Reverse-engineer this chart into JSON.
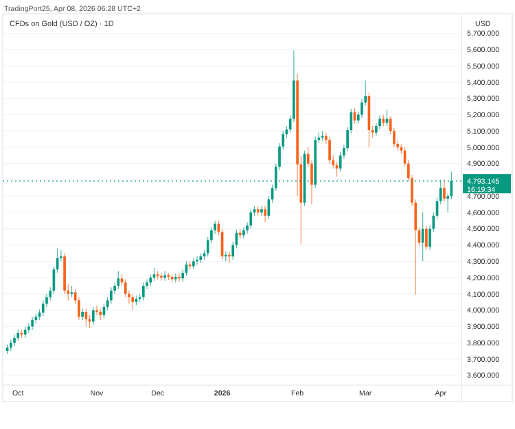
{
  "chart_data": {
    "type": "candlestick",
    "title": "CFDs on Gold (USD / OZ) · 1D",
    "ylabel": "USD",
    "annotations": [
      "TradingPort25, Apr 08, 2026 06:28 UTC+2",
      "16:19:34"
    ],
    "categories": [
      null,
      null,
      null,
      "Oct",
      null,
      null,
      null,
      null,
      null,
      null,
      null,
      null,
      null,
      null,
      null,
      null,
      null,
      null,
      null,
      null,
      null,
      null,
      null,
      null,
      null,
      "Nov",
      null,
      null,
      null,
      null,
      null,
      null,
      null,
      null,
      null,
      null,
      null,
      null,
      null,
      null,
      null,
      null,
      "Dec",
      null,
      null,
      null,
      null,
      null,
      null,
      null,
      null,
      null,
      null,
      null,
      null,
      null,
      null,
      null,
      null,
      null,
      "2026",
      null,
      null,
      null,
      null,
      null,
      null,
      null,
      null,
      null,
      null,
      null,
      null,
      null,
      null,
      null,
      null,
      null,
      null,
      null,
      null,
      "Feb",
      null,
      null,
      null,
      null,
      null,
      null,
      null,
      null,
      null,
      null,
      null,
      null,
      null,
      null,
      null,
      null,
      null,
      null,
      "Mar",
      null,
      null,
      null,
      null,
      null,
      null,
      null,
      null,
      null,
      null,
      null,
      null,
      null,
      null,
      null,
      null,
      null,
      null,
      null,
      null,
      "Apr",
      null,
      null,
      null
    ],
    "ohlc": [
      [
        3750,
        3790,
        3730,
        3770
      ],
      [
        3770,
        3820,
        3750,
        3800
      ],
      [
        3800,
        3850,
        3780,
        3830
      ],
      [
        3830,
        3880,
        3810,
        3860
      ],
      [
        3860,
        3880,
        3830,
        3850
      ],
      [
        3850,
        3900,
        3830,
        3880
      ],
      [
        3880,
        3920,
        3860,
        3900
      ],
      [
        3900,
        3960,
        3880,
        3940
      ],
      [
        3940,
        3980,
        3920,
        3960
      ],
      [
        3960,
        4005,
        3940,
        3985
      ],
      [
        3985,
        4060,
        3965,
        4040
      ],
      [
        4040,
        4100,
        4020,
        4080
      ],
      [
        4080,
        4140,
        4060,
        4120
      ],
      [
        4120,
        4270,
        4100,
        4250
      ],
      [
        4250,
        4380,
        4230,
        4320
      ],
      [
        4320,
        4370,
        4300,
        4330
      ],
      [
        4330,
        4350,
        4100,
        4120
      ],
      [
        4120,
        4160,
        4060,
        4100
      ],
      [
        4100,
        4150,
        4080,
        4110
      ],
      [
        4110,
        4130,
        4040,
        4060
      ],
      [
        4060,
        4080,
        3940,
        3960
      ],
      [
        3960,
        4010,
        3940,
        3990
      ],
      [
        3990,
        4010,
        3900,
        3945
      ],
      [
        3945,
        3970,
        3890,
        3930
      ],
      [
        3930,
        4020,
        3910,
        4000
      ],
      [
        4000,
        4030,
        3970,
        3990
      ],
      [
        3990,
        4010,
        3940,
        3970
      ],
      [
        3970,
        4040,
        3950,
        4020
      ],
      [
        4020,
        4080,
        4000,
        4060
      ],
      [
        4060,
        4140,
        4040,
        4120
      ],
      [
        4120,
        4170,
        4100,
        4150
      ],
      [
        4150,
        4240,
        4130,
        4195
      ],
      [
        4195,
        4220,
        4150,
        4170
      ],
      [
        4170,
        4190,
        4080,
        4100
      ],
      [
        4100,
        4120,
        4040,
        4080
      ],
      [
        4080,
        4100,
        4000,
        4050
      ],
      [
        4050,
        4090,
        4030,
        4070
      ],
      [
        4070,
        4100,
        4050,
        4080
      ],
      [
        4080,
        4170,
        4060,
        4150
      ],
      [
        4150,
        4190,
        4130,
        4170
      ],
      [
        4170,
        4220,
        4150,
        4200
      ],
      [
        4200,
        4260,
        4180,
        4220
      ],
      [
        4220,
        4240,
        4190,
        4210
      ],
      [
        4210,
        4230,
        4180,
        4200
      ],
      [
        4200,
        4240,
        4180,
        4215
      ],
      [
        4215,
        4230,
        4185,
        4205
      ],
      [
        4205,
        4220,
        4170,
        4190
      ],
      [
        4190,
        4225,
        4170,
        4205
      ],
      [
        4205,
        4225,
        4175,
        4195
      ],
      [
        4195,
        4250,
        4175,
        4230
      ],
      [
        4230,
        4300,
        4210,
        4280
      ],
      [
        4280,
        4300,
        4250,
        4270
      ],
      [
        4270,
        4320,
        4250,
        4300
      ],
      [
        4300,
        4330,
        4280,
        4310
      ],
      [
        4310,
        4350,
        4290,
        4330
      ],
      [
        4330,
        4370,
        4310,
        4350
      ],
      [
        4350,
        4450,
        4330,
        4430
      ],
      [
        4430,
        4510,
        4410,
        4490
      ],
      [
        4490,
        4550,
        4470,
        4530
      ],
      [
        4530,
        4550,
        4460,
        4480
      ],
      [
        4480,
        4500,
        4310,
        4330
      ],
      [
        4330,
        4360,
        4300,
        4340
      ],
      [
        4340,
        4360,
        4290,
        4330
      ],
      [
        4330,
        4420,
        4310,
        4400
      ],
      [
        4400,
        4495,
        4380,
        4475
      ],
      [
        4475,
        4500,
        4440,
        4460
      ],
      [
        4460,
        4510,
        4440,
        4490
      ],
      [
        4490,
        4540,
        4470,
        4520
      ],
      [
        4520,
        4620,
        4500,
        4600
      ],
      [
        4600,
        4640,
        4580,
        4620
      ],
      [
        4620,
        4640,
        4580,
        4600
      ],
      [
        4600,
        4640,
        4580,
        4620
      ],
      [
        4620,
        4640,
        4540,
        4580
      ],
      [
        4580,
        4700,
        4560,
        4680
      ],
      [
        4680,
        4770,
        4660,
        4750
      ],
      [
        4750,
        4900,
        4730,
        4880
      ],
      [
        4880,
        5025,
        4860,
        5005
      ],
      [
        5005,
        5100,
        4985,
        5080
      ],
      [
        5080,
        5130,
        5060,
        5110
      ],
      [
        5110,
        5195,
        5090,
        5175
      ],
      [
        5175,
        5595,
        5155,
        5410
      ],
      [
        5410,
        5450,
        4700,
        4895
      ],
      [
        4895,
        4950,
        4405,
        4660
      ],
      [
        4660,
        4980,
        4640,
        4960
      ],
      [
        4960,
        5000,
        4880,
        4900
      ],
      [
        4900,
        4920,
        4650,
        4770
      ],
      [
        4770,
        5065,
        4750,
        5045
      ],
      [
        5045,
        5090,
        5025,
        5060
      ],
      [
        5060,
        5100,
        5040,
        5070
      ],
      [
        5070,
        5090,
        5020,
        5045
      ],
      [
        5045,
        5060,
        4900,
        4920
      ],
      [
        4920,
        4950,
        4870,
        4890
      ],
      [
        4890,
        4910,
        4820,
        4870
      ],
      [
        4870,
        4970,
        4850,
        4950
      ],
      [
        4950,
        5015,
        4930,
        4995
      ],
      [
        4995,
        5125,
        4975,
        5105
      ],
      [
        5105,
        5235,
        5085,
        5215
      ],
      [
        5215,
        5240,
        5145,
        5165
      ],
      [
        5165,
        5220,
        5145,
        5200
      ],
      [
        5200,
        5295,
        5180,
        5275
      ],
      [
        5275,
        5410,
        5255,
        5315
      ],
      [
        5315,
        5335,
        5000,
        5105
      ],
      [
        5105,
        5130,
        5060,
        5090
      ],
      [
        5090,
        5150,
        5070,
        5130
      ],
      [
        5130,
        5195,
        5110,
        5175
      ],
      [
        5175,
        5200,
        5130,
        5150
      ],
      [
        5150,
        5230,
        5130,
        5175
      ],
      [
        5175,
        5190,
        5080,
        5100
      ],
      [
        5100,
        5120,
        5000,
        5020
      ],
      [
        5020,
        5040,
        4980,
        5000
      ],
      [
        5000,
        5020,
        4960,
        4980
      ],
      [
        4980,
        5000,
        4880,
        4900
      ],
      [
        4900,
        4920,
        4790,
        4810
      ],
      [
        4810,
        4830,
        4640,
        4660
      ],
      [
        4660,
        4680,
        4095,
        4490
      ],
      [
        4490,
        4510,
        4395,
        4415
      ],
      [
        4415,
        4600,
        4300,
        4500
      ],
      [
        4500,
        4520,
        4370,
        4390
      ],
      [
        4390,
        4520,
        4370,
        4500
      ],
      [
        4500,
        4600,
        4480,
        4580
      ],
      [
        4580,
        4690,
        4560,
        4670
      ],
      [
        4670,
        4800,
        4650,
        4750
      ],
      [
        4750,
        4800,
        4665,
        4685
      ],
      [
        4685,
        4720,
        4600,
        4700
      ],
      [
        4700,
        4850,
        4680,
        4793.145
      ]
    ],
    "colors": [
      "#089981",
      "#089981",
      "#089981",
      "#089981",
      "#f7631b",
      "#089981",
      "#089981",
      "#089981",
      "#089981",
      "#089981",
      "#089981",
      "#089981",
      "#089981",
      "#089981",
      "#089981",
      "#089981",
      "#f7631b",
      "#f7631b",
      "#089981",
      "#f7631b",
      "#f7631b",
      "#089981",
      "#f7631b",
      "#f7631b",
      "#089981",
      "#f7631b",
      "#f7631b",
      "#089981",
      "#089981",
      "#089981",
      "#089981",
      "#089981",
      "#f7631b",
      "#f7631b",
      "#f7631b",
      "#f7631b",
      "#089981",
      "#089981",
      "#089981",
      "#089981",
      "#089981",
      "#089981",
      "#f7631b",
      "#f7631b",
      "#089981",
      "#f7631b",
      "#f7631b",
      "#089981",
      "#f7631b",
      "#089981",
      "#089981",
      "#f7631b",
      "#089981",
      "#089981",
      "#089981",
      "#089981",
      "#089981",
      "#089981",
      "#089981",
      "#f7631b",
      "#f7631b",
      "#089981",
      "#f7631b",
      "#089981",
      "#089981",
      "#f7631b",
      "#089981",
      "#089981",
      "#089981",
      "#089981",
      "#f7631b",
      "#089981",
      "#f7631b",
      "#089981",
      "#089981",
      "#089981",
      "#089981",
      "#089981",
      "#089981",
      "#089981",
      "#089981",
      "#f7631b",
      "#f7631b",
      "#089981",
      "#f7631b",
      "#f7631b",
      "#089981",
      "#089981",
      "#089981",
      "#f7631b",
      "#f7631b",
      "#f7631b",
      "#f7631b",
      "#089981",
      "#089981",
      "#089981",
      "#089981",
      "#f7631b",
      "#089981",
      "#089981",
      "#089981",
      "#f7631b",
      "#f7631b",
      "#089981",
      "#089981",
      "#f7631b",
      "#089981",
      "#f7631b",
      "#f7631b",
      "#f7631b",
      "#f7631b",
      "#f7631b",
      "#f7631b",
      "#f7631b",
      "#f7631b",
      "#f7631b",
      "#089981",
      "#f7631b",
      "#089981",
      "#089981",
      "#089981",
      "#089981",
      "#f7631b",
      "#089981",
      "#089981"
    ],
    "ylim": [
      3540,
      5820
    ],
    "yticks": [
      {
        "value": 3600,
        "label": "3,600.000"
      },
      {
        "value": 3700,
        "label": "3,700.000"
      },
      {
        "value": 3800,
        "label": "3,800.000"
      },
      {
        "value": 3900,
        "label": "3,900.000"
      },
      {
        "value": 4000,
        "label": "4,000.000"
      },
      {
        "value": 4100,
        "label": "4,100.000"
      },
      {
        "value": 4200,
        "label": "4,200.000"
      },
      {
        "value": 4300,
        "label": "4,300.000"
      },
      {
        "value": 4400,
        "label": "4,400.000"
      },
      {
        "value": 4500,
        "label": "4,500.000"
      },
      {
        "value": 4600,
        "label": "4,600.000"
      },
      {
        "value": 4700,
        "label": "4,700.000"
      },
      {
        "value": 4800,
        "label": null
      },
      {
        "value": 4900,
        "label": "4,900.000"
      },
      {
        "value": 5000,
        "label": "5,000.000"
      },
      {
        "value": 5100,
        "label": "5,100.000"
      },
      {
        "value": 5200,
        "label": "5,200.000"
      },
      {
        "value": 5300,
        "label": "5,300.000"
      },
      {
        "value": 5400,
        "label": "5,400.000"
      },
      {
        "value": 5500,
        "label": "5,500.000"
      },
      {
        "value": 5600,
        "label": "5,600.000"
      },
      {
        "value": 5700,
        "label": "5,700.000"
      }
    ],
    "grid": "y",
    "ref_lines": [
      {
        "axis": "y",
        "value": 4793.145,
        "label": "4,793.145",
        "color": "#089981",
        "line_style": "dotted"
      }
    ]
  }
}
